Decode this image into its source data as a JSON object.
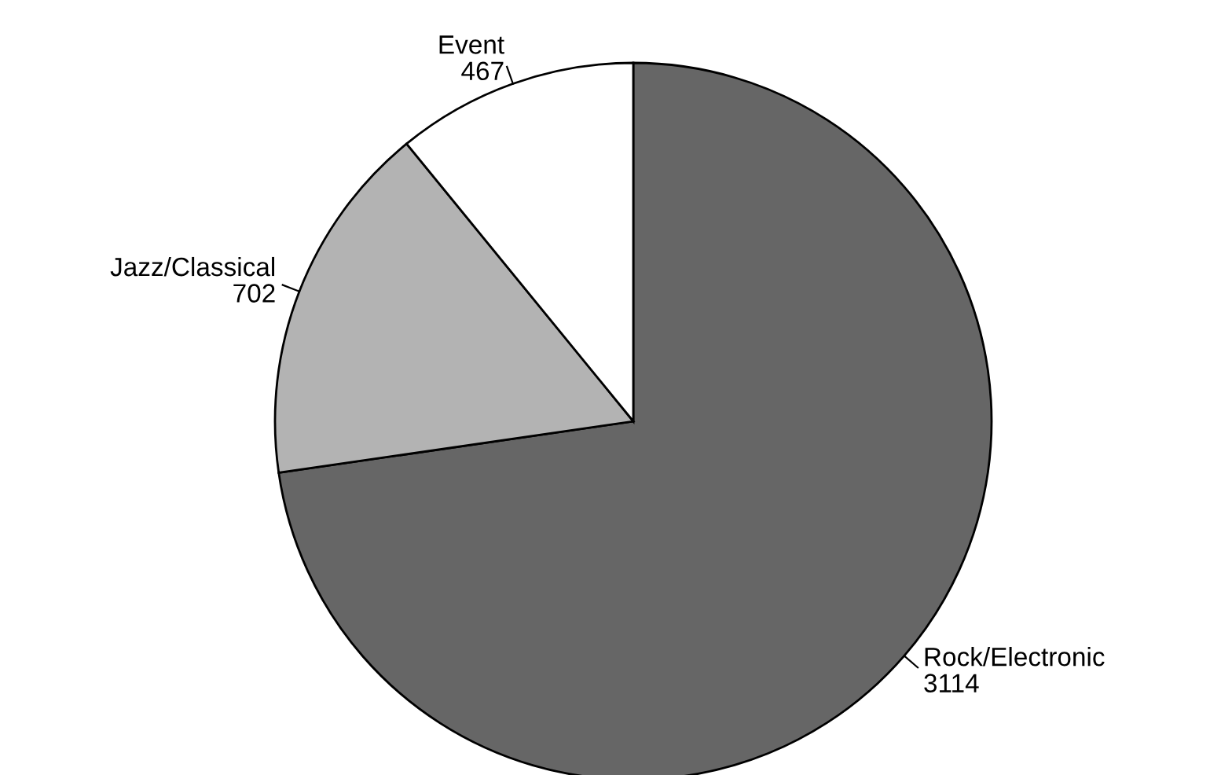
{
  "chart_data": {
    "type": "pie",
    "categories": [
      "Rock/Electronic",
      "Jazz/Classical",
      "Event"
    ],
    "values": [
      3114,
      702,
      467
    ],
    "colors": [
      "#666666",
      "#b3b3b3",
      "#ffffff"
    ],
    "data_labels": true
  }
}
